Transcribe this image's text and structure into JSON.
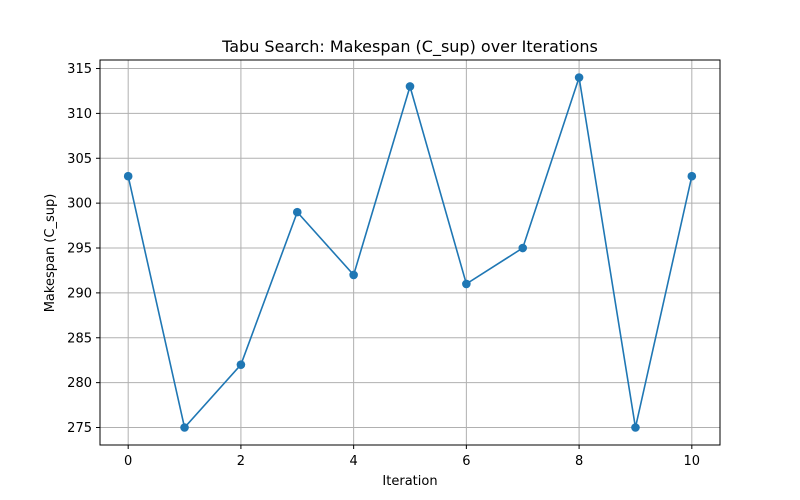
{
  "chart_data": {
    "type": "line",
    "title": "Tabu Search: Makespan (C_sup) over Iterations",
    "xlabel": "Iteration",
    "ylabel": "Makespan (C_sup)",
    "x": [
      0,
      1,
      2,
      3,
      4,
      5,
      6,
      7,
      8,
      9,
      10
    ],
    "series": [
      {
        "values": [
          303,
          275,
          282,
          299,
          292,
          313,
          291,
          295,
          314,
          275,
          303
        ],
        "color": "#1f77b4",
        "marker": "circle"
      }
    ],
    "xlim": [
      -0.5,
      10.5
    ],
    "ylim": [
      273.05,
      315.95
    ],
    "xticks": [
      0,
      2,
      4,
      6,
      8,
      10
    ],
    "yticks": [
      275,
      280,
      285,
      290,
      295,
      300,
      305,
      310,
      315
    ],
    "grid": true
  }
}
